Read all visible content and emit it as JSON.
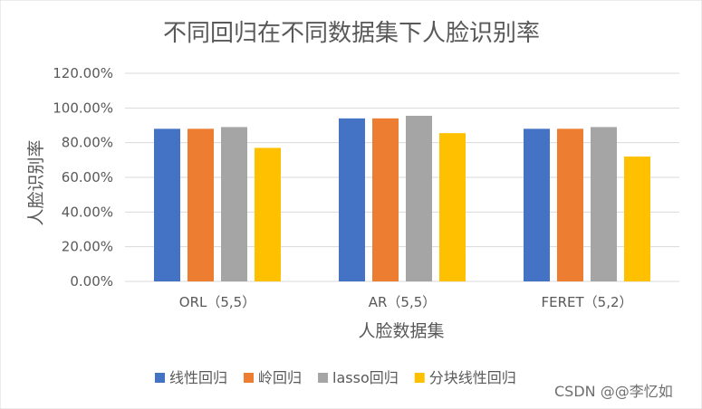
{
  "chart_data": {
    "type": "bar",
    "title": "不同回归在不同数据集下人脸识别率",
    "xlabel": "人脸数据集",
    "ylabel": "人脸识别率",
    "categories": [
      "ORL（5,5）",
      "AR（5,5）",
      "FERET（5,2）"
    ],
    "series": [
      {
        "name": "线性回归",
        "values": [
          88.0,
          94.0,
          88.0
        ],
        "color": "#4472C4"
      },
      {
        "name": "岭回归",
        "values": [
          88.0,
          94.0,
          88.0
        ],
        "color": "#ED7D31"
      },
      {
        "name": "lasso回归",
        "values": [
          89.0,
          95.5,
          89.0
        ],
        "color": "#A5A5A5"
      },
      {
        "name": "分块线性回归",
        "values": [
          77.0,
          85.5,
          72.0
        ],
        "color": "#FFC000"
      }
    ],
    "ylim": [
      0,
      120
    ],
    "yticks": [
      "0.00%",
      "20.00%",
      "40.00%",
      "60.00%",
      "80.00%",
      "100.00%",
      "120.00%"
    ],
    "grid": true,
    "legend": "bottom"
  },
  "watermark": "CSDN @@李忆如"
}
